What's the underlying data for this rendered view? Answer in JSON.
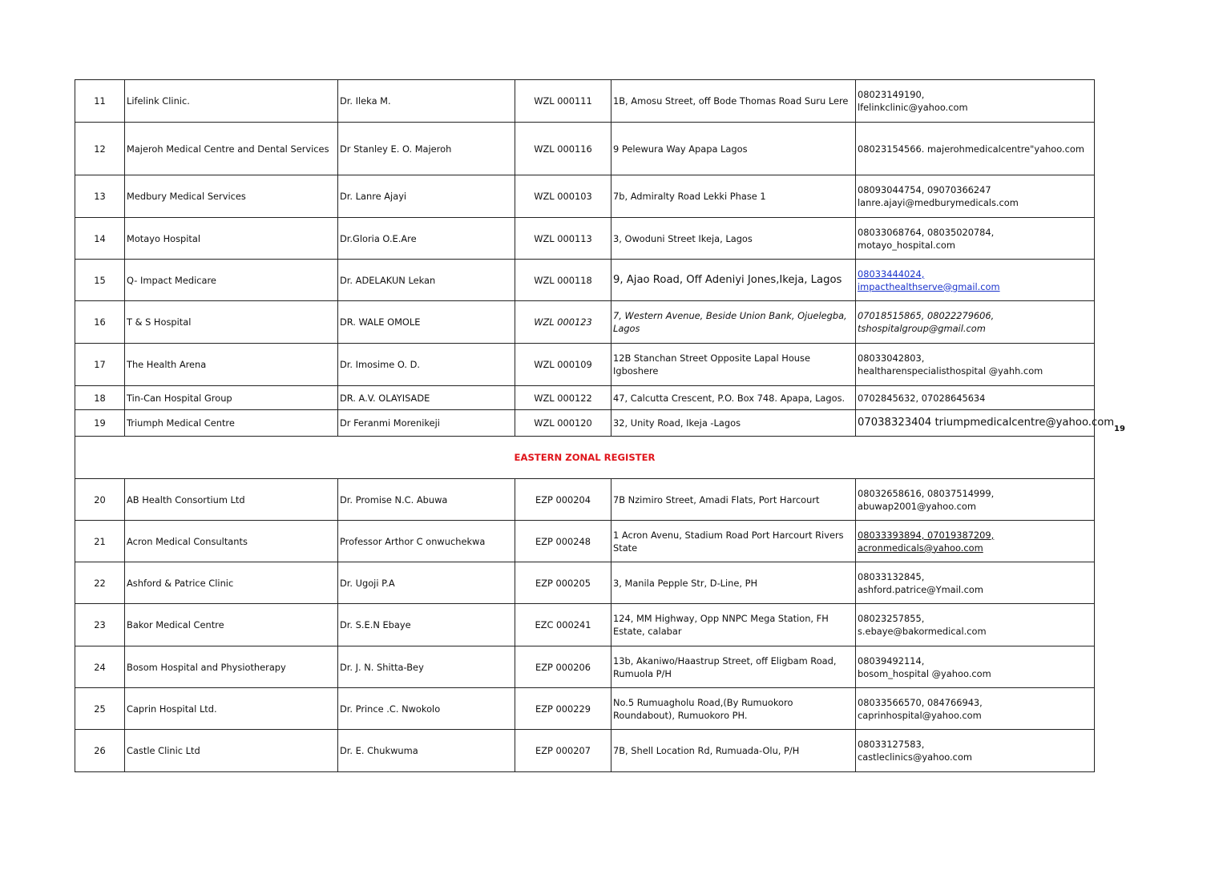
{
  "page_number": "19",
  "section_title": "EASTERN  ZONAL REGISTER",
  "section_color": "#e0151b",
  "rows_before": [
    {
      "no": "11",
      "name": "Lifelink Clinic.",
      "doctor": "Dr. Ileka M.",
      "code": "WZL 000111",
      "address": "1B, Amosu Street, off Bode Thomas Road Suru Lere",
      "contact": [
        "08023149190,",
        "lfelinkclinic@yahoo.com"
      ]
    },
    {
      "no": "12",
      "name": "Majeroh Medical Centre and Dental Services",
      "doctor": "Dr Stanley E. O. Majeroh",
      "code": "WZL 000116",
      "address": "9 Pelewura Way Apapa Lagos",
      "contact": [
        "08023154566. majerohmedicalcentre\"yahoo.com"
      ]
    },
    {
      "no": "13",
      "name": "Medbury Medical Services",
      "doctor": "Dr. Lanre Ajayi",
      "code": "WZL 000103",
      "address": "7b, Admiralty Road Lekki Phase 1",
      "contact": [
        "08093044754,  09070366247",
        "lanre.ajayi@medburymedicals.com"
      ]
    },
    {
      "no": "14",
      "name": "Motayo Hospital",
      "doctor": "Dr.Gloria O.E.Are",
      "code": "WZL 000113",
      "address": "3, Owoduni Street Ikeja, Lagos",
      "contact": [
        "08033068764,   08035020784,",
        "motayo_hospital.com"
      ]
    },
    {
      "no": "15",
      "name": "Q- Impact Medicare",
      "doctor": "Dr. ADELAKUN Lekan",
      "code": "WZL 000118",
      "address": "9, Ajao Road, Off Adeniyi Jones,Ikeja,  Lagos",
      "contact": [
        "08033444024,",
        "impacthealthserve@gmail.com"
      ],
      "style": "link",
      "addr_style": "big"
    },
    {
      "no": "16",
      "name": "T & S Hospital",
      "doctor": "DR. WALE OMOLE",
      "code": "WZL 000123",
      "address": "7, Western Avenue, Beside Union Bank, Ojuelegba, Lagos",
      "contact": [
        "07018515865, 08022279606,",
        "tshospitalgroup@gmail.com"
      ],
      "style": "it",
      "code_style": "it",
      "addr_style": "it"
    },
    {
      "no": "17",
      "name": "The Health Arena",
      "doctor": "Dr. Imosime O. D.",
      "code": "WZL 000109",
      "address": "12B Stanchan Street Opposite Lapal House Igboshere",
      "contact": [
        "08033042803,",
        "healtharenspecialisthospital @yahh.com"
      ]
    },
    {
      "no": "18",
      "name": "Tin-Can Hospital Group",
      "doctor": "DR. A.V. OLAYISADE",
      "code": "WZL 000122",
      "address": "47, Calcutta Crescent, P.O. Box 748. Apapa, Lagos.",
      "contact": [
        "0702845632,  07028645634"
      ]
    },
    {
      "no": "19",
      "name": "Triumph Medical Centre",
      "doctor": "Dr Feranmi Morenikeji",
      "code": "WZL 000120",
      "address": "32, Unity Road, Ikeja -Lagos",
      "contact": [
        "07038323404 triumpmedicalcentre@yahoo.com"
      ],
      "style": "big"
    }
  ],
  "rows_after": [
    {
      "no": "20",
      "name": "AB Health Consortium  Ltd",
      "doctor": "Dr. Promise N.C. Abuwa",
      "code": "EZP 000204",
      "address": "7B Nzimiro Street, Amadi Flats, Port Harcourt",
      "contact": [
        "08032658616, 08037514999,",
        "abuwap2001@yahoo.com"
      ]
    },
    {
      "no": "21",
      "name": "Acron Medical Consultants",
      "doctor": "Professor  Arthor C onwuchekwa",
      "code": "EZP 000248",
      "address": "1 Acron Avenu, Stadium Road Port Harcourt Rivers State",
      "contact": [
        "08033393894, 07019387209, ",
        "acronmedicals@yahoo.com"
      ],
      "style": "ul"
    },
    {
      "no": "22",
      "name": "Ashford & Patrice Clinic",
      "doctor": "Dr. Ugoji P.A",
      "code": "EZP 000205",
      "address": "3, Manila Pepple Str, D-Line, PH",
      "contact": [
        "08033132845,",
        "ashford.patrice@Ymail.com"
      ]
    },
    {
      "no": "23",
      "name": "Bakor Medical Centre",
      "doctor": "Dr. S.E.N Ebaye",
      "code": "EZC 000241",
      "address": "124, MM Highway, Opp NNPC Mega Station, FH Estate, calabar",
      "contact": [
        "08023257855,",
        "s.ebaye@bakormedical.com"
      ]
    },
    {
      "no": "24",
      "name": "Bosom Hospital and Physiotherapy",
      "doctor": "Dr.  J. N. Shitta-Bey",
      "code": "EZP 000206",
      "address": "13b, Akaniwo/Haastrup Street, off Eligbam Road, Rumuola P/H",
      "contact": [
        "08039492114,",
        "bosom_hospital @yahoo.com"
      ]
    },
    {
      "no": "25",
      "name": "Caprin Hospital Ltd.",
      "doctor": "Dr. Prince .C. Nwokolo",
      "code": "EZP 000229",
      "address": "No.5 Rumuagholu Road,(By Rumuokoro Roundabout), Rumuokoro PH.",
      "contact": [
        "08033566570, 084766943,",
        "caprinhospital@yahoo.com"
      ]
    },
    {
      "no": "26",
      "name": "Castle Clinic Ltd",
      "doctor": "Dr.  E. Chukwuma",
      "code": "EZP 000207",
      "address": "7B, Shell Location Rd, Rumuada-Olu, P/H",
      "contact": [
        "08033127583,",
        "castleclinics@yahoo.com"
      ]
    }
  ]
}
